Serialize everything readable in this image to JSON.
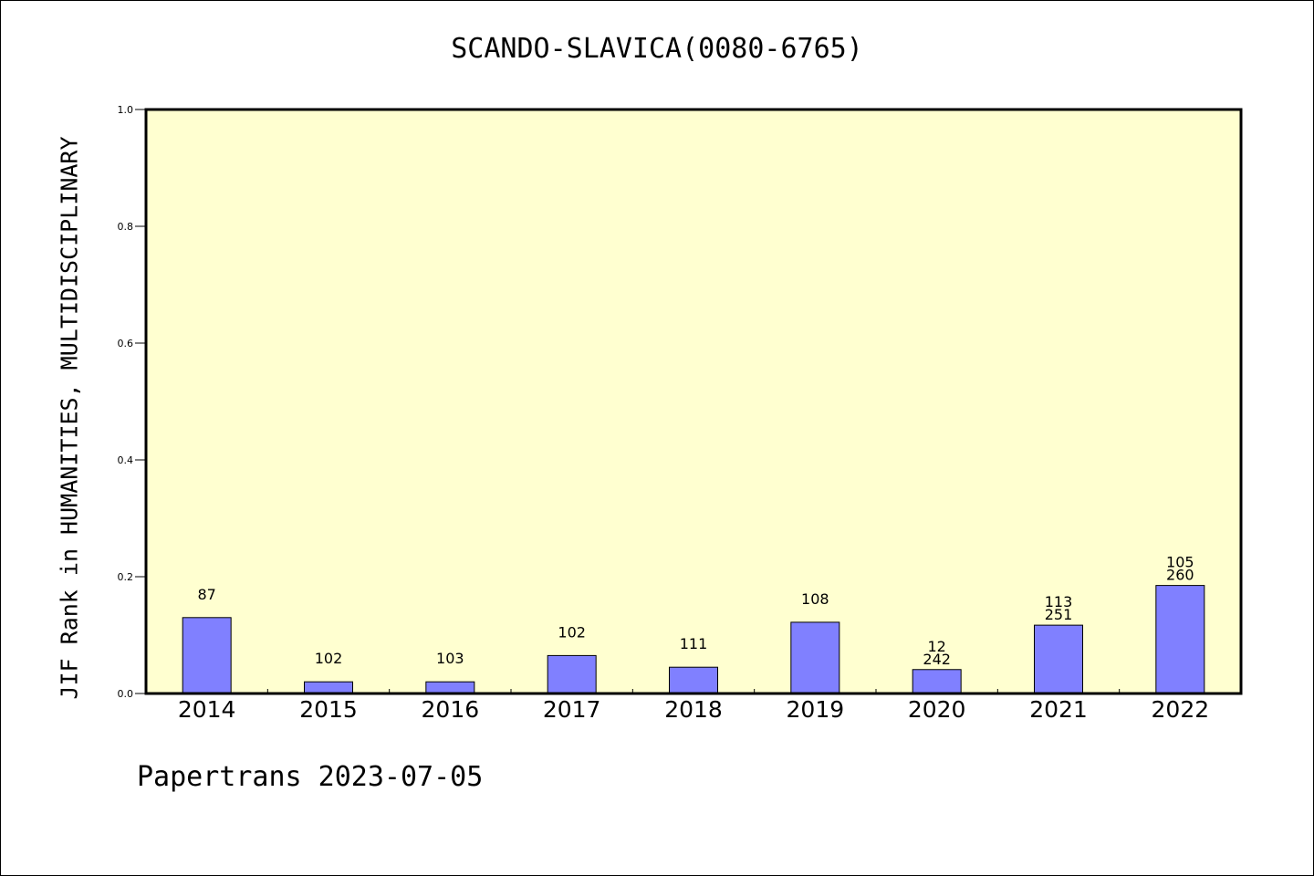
{
  "chart_data": {
    "type": "bar",
    "title": "SCANDO-SLAVICA(0080-6765)",
    "ylabel": "JIF Rank in HUMANITIES, MULTIDISCIPLINARY",
    "xlabel": "",
    "ylim": [
      0,
      1.0
    ],
    "yticks": [
      "0.0",
      "0.2",
      "0.4",
      "0.6",
      "0.8",
      "1.0"
    ],
    "categories": [
      "2014",
      "2015",
      "2016",
      "2017",
      "2018",
      "2019",
      "2020",
      "2021",
      "2022"
    ],
    "values": [
      0.13,
      0.02,
      0.02,
      0.065,
      0.045,
      0.122,
      0.041,
      0.117,
      0.185
    ],
    "bar_labels": [
      [
        "87"
      ],
      [
        "102"
      ],
      [
        "103"
      ],
      [
        "102"
      ],
      [
        "111"
      ],
      [
        "108"
      ],
      [
        "12",
        "242"
      ],
      [
        "113",
        "251"
      ],
      [
        "105",
        "260"
      ]
    ],
    "grid": false,
    "colors": {
      "bar": "#8080ff",
      "plot_bg": "#ffffd0",
      "axis": "#000000"
    }
  },
  "footer": "Papertrans 2023-07-05"
}
